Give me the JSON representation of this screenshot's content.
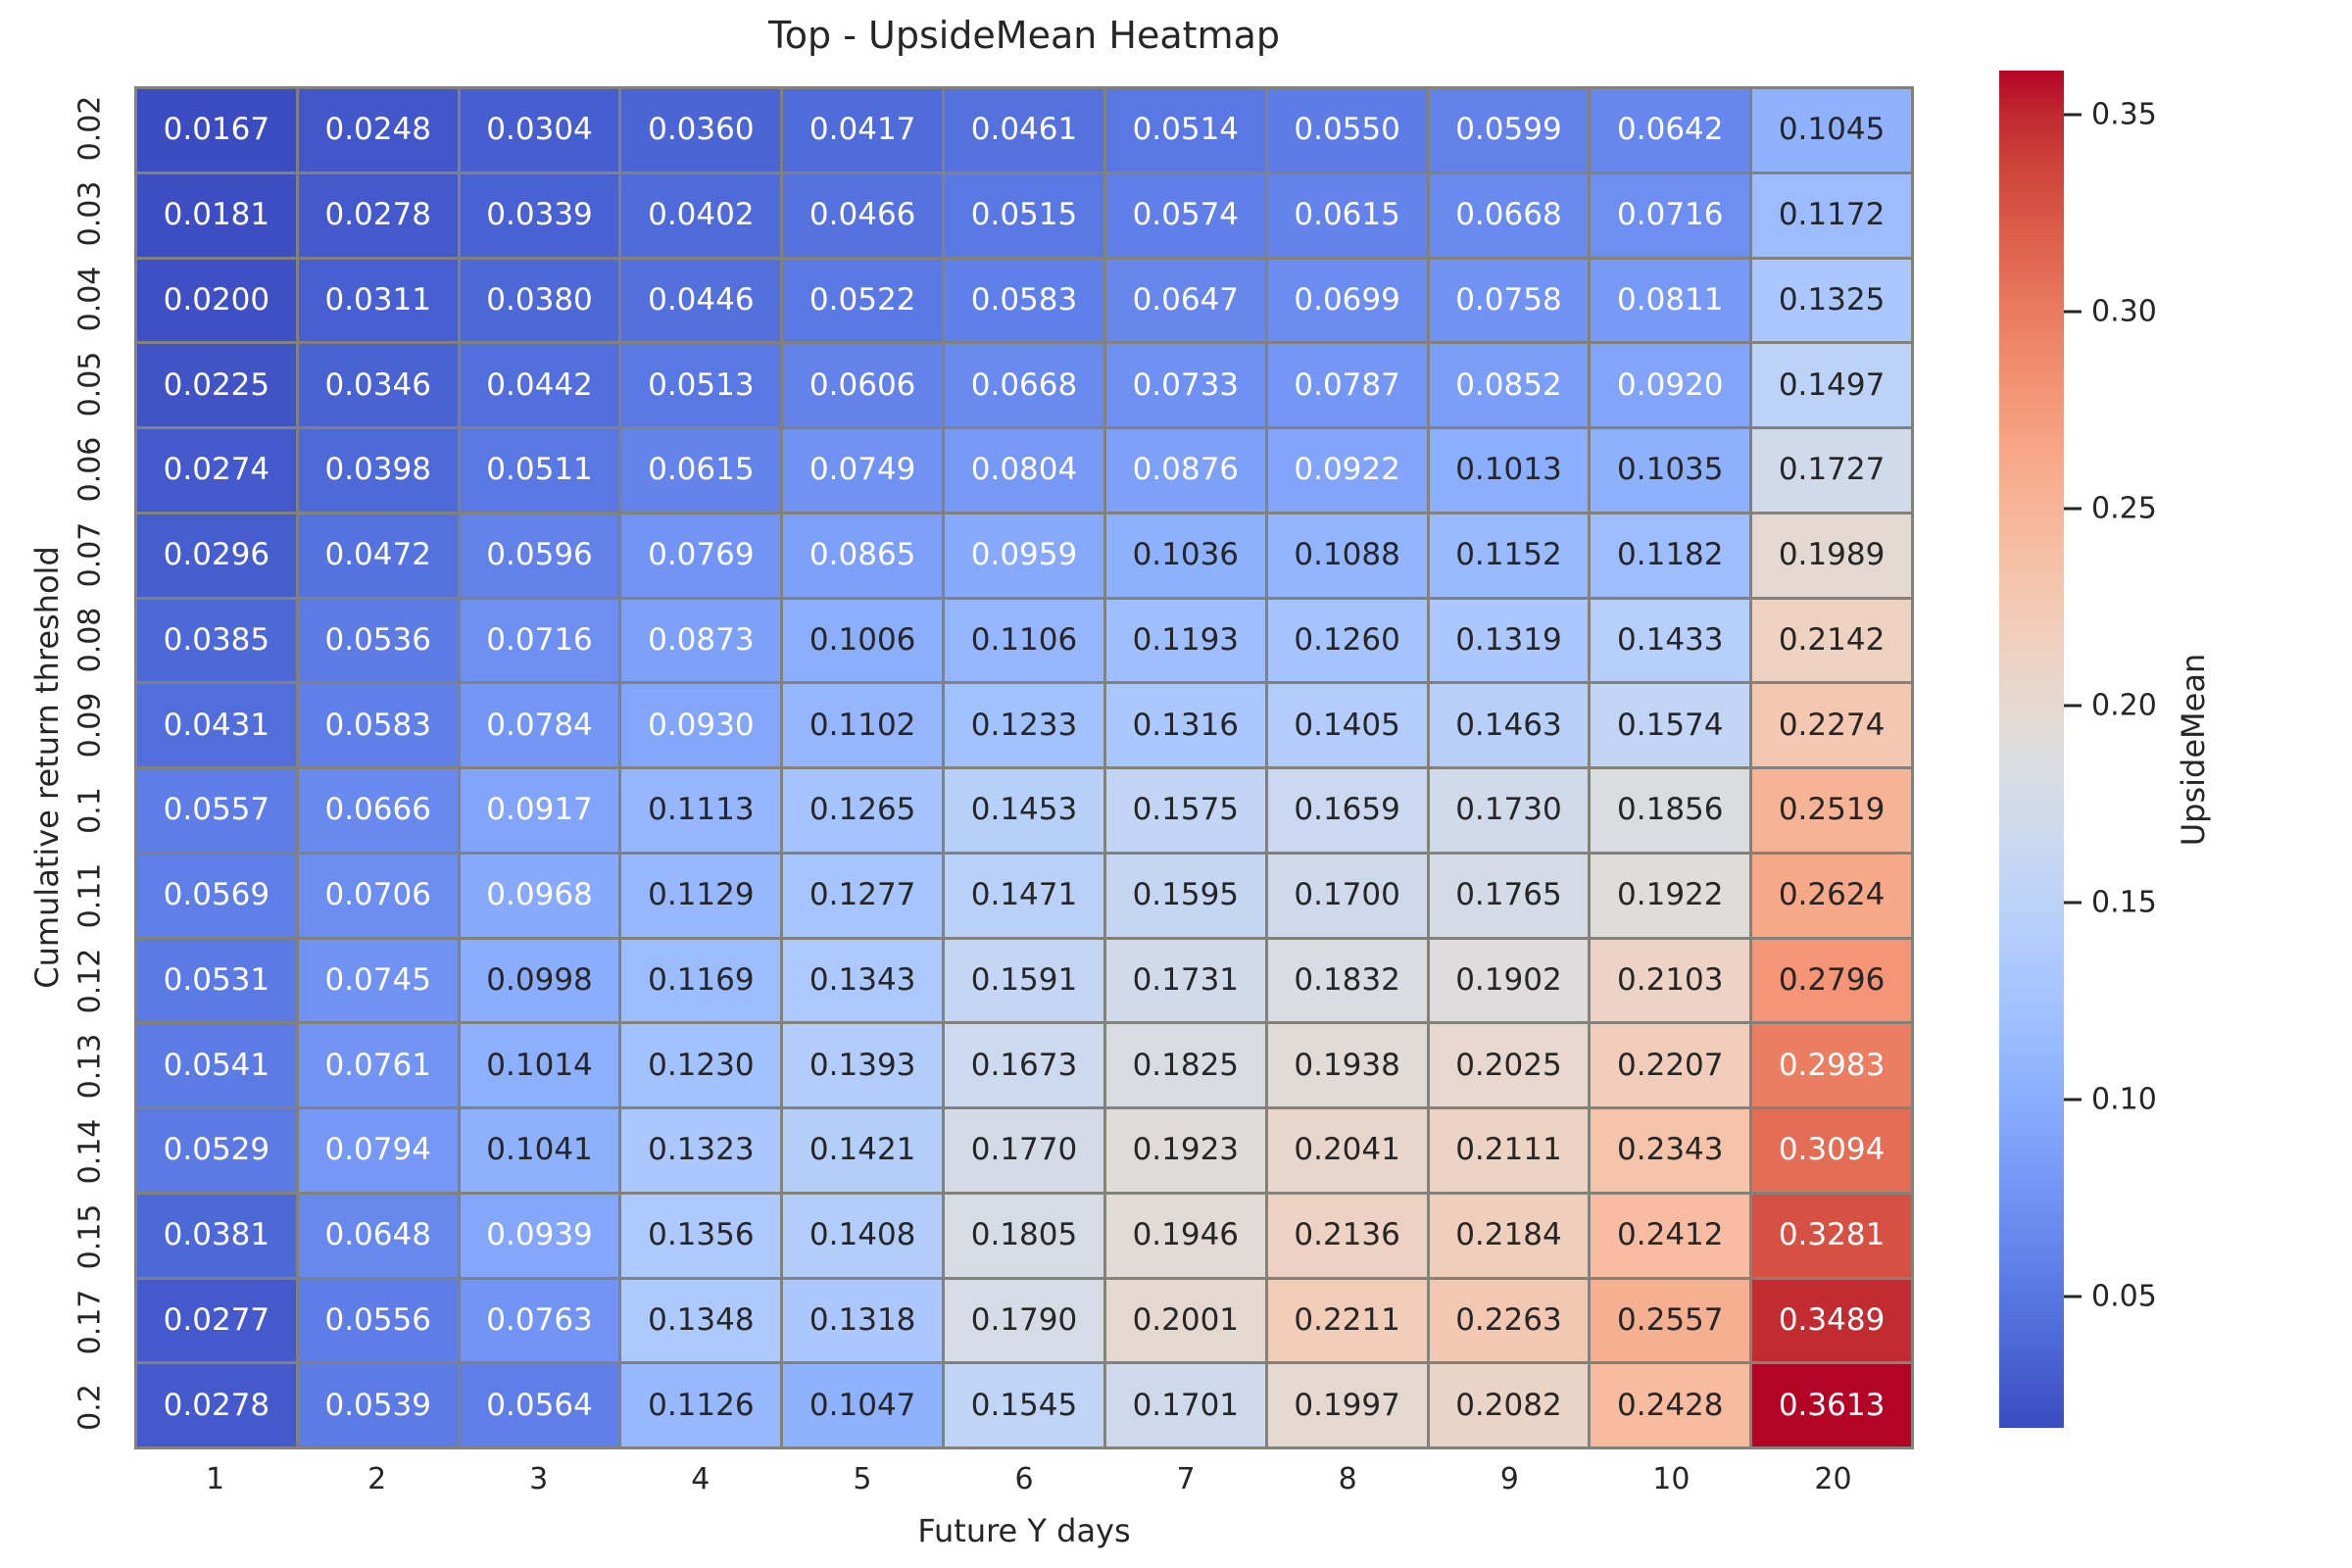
{
  "title": "Top - UpsideMean Heatmap",
  "xlabel": "Future Y days",
  "ylabel": "Cumulative return threshold",
  "colorbar": {
    "label": "UpsideMean",
    "tick_labels": [
      "0.05",
      "0.10",
      "0.15",
      "0.20",
      "0.25",
      "0.30",
      "0.35"
    ],
    "tick_values": [
      0.05,
      0.1,
      0.15,
      0.2,
      0.25,
      0.3,
      0.35
    ]
  },
  "colors": {
    "background": "#ffffff",
    "grid_line": "#82827a",
    "text_dark": "#262626",
    "text_light": "#ffffff",
    "colormap_low": "#3b4cc0",
    "colormap_mid": "#dddddd",
    "colormap_high": "#b40426"
  },
  "chart_data": {
    "type": "heatmap",
    "colormap": "coolwarm",
    "annot_decimals": 4,
    "x_categories": [
      "1",
      "2",
      "3",
      "4",
      "5",
      "6",
      "7",
      "8",
      "9",
      "10",
      "20"
    ],
    "y_categories": [
      "0.02",
      "0.03",
      "0.04",
      "0.05",
      "0.06",
      "0.07",
      "0.08",
      "0.09",
      "0.1",
      "0.11",
      "0.12",
      "0.13",
      "0.14",
      "0.15",
      "0.17",
      "0.2"
    ],
    "values": [
      [
        0.0167,
        0.0248,
        0.0304,
        0.036,
        0.0417,
        0.0461,
        0.0514,
        0.055,
        0.0599,
        0.0642,
        0.1045
      ],
      [
        0.0181,
        0.0278,
        0.0339,
        0.0402,
        0.0466,
        0.0515,
        0.0574,
        0.0615,
        0.0668,
        0.0716,
        0.1172
      ],
      [
        0.02,
        0.0311,
        0.038,
        0.0446,
        0.0522,
        0.0583,
        0.0647,
        0.0699,
        0.0758,
        0.0811,
        0.1325
      ],
      [
        0.0225,
        0.0346,
        0.0442,
        0.0513,
        0.0606,
        0.0668,
        0.0733,
        0.0787,
        0.0852,
        0.092,
        0.1497
      ],
      [
        0.0274,
        0.0398,
        0.0511,
        0.0615,
        0.0749,
        0.0804,
        0.0876,
        0.0922,
        0.1013,
        0.1035,
        0.1727
      ],
      [
        0.0296,
        0.0472,
        0.0596,
        0.0769,
        0.0865,
        0.0959,
        0.1036,
        0.1088,
        0.1152,
        0.1182,
        0.1989
      ],
      [
        0.0385,
        0.0536,
        0.0716,
        0.0873,
        0.1006,
        0.1106,
        0.1193,
        0.126,
        0.1319,
        0.1433,
        0.2142
      ],
      [
        0.0431,
        0.0583,
        0.0784,
        0.093,
        0.1102,
        0.1233,
        0.1316,
        0.1405,
        0.1463,
        0.1574,
        0.2274
      ],
      [
        0.0557,
        0.0666,
        0.0917,
        0.1113,
        0.1265,
        0.1453,
        0.1575,
        0.1659,
        0.173,
        0.1856,
        0.2519
      ],
      [
        0.0569,
        0.0706,
        0.0968,
        0.1129,
        0.1277,
        0.1471,
        0.1595,
        0.17,
        0.1765,
        0.1922,
        0.2624
      ],
      [
        0.0531,
        0.0745,
        0.0998,
        0.1169,
        0.1343,
        0.1591,
        0.1731,
        0.1832,
        0.1902,
        0.2103,
        0.2796
      ],
      [
        0.0541,
        0.0761,
        0.1014,
        0.123,
        0.1393,
        0.1673,
        0.1825,
        0.1938,
        0.2025,
        0.2207,
        0.2983
      ],
      [
        0.0529,
        0.0794,
        0.1041,
        0.1323,
        0.1421,
        0.177,
        0.1923,
        0.2041,
        0.2111,
        0.2343,
        0.3094
      ],
      [
        0.0381,
        0.0648,
        0.0939,
        0.1356,
        0.1408,
        0.1805,
        0.1946,
        0.2136,
        0.2184,
        0.2412,
        0.3281
      ],
      [
        0.0277,
        0.0556,
        0.0763,
        0.1348,
        0.1318,
        0.179,
        0.2001,
        0.2211,
        0.2263,
        0.2557,
        0.3489
      ],
      [
        0.0278,
        0.0539,
        0.0564,
        0.1126,
        0.1047,
        0.1545,
        0.1701,
        0.1997,
        0.2082,
        0.2428,
        0.3613
      ]
    ]
  }
}
